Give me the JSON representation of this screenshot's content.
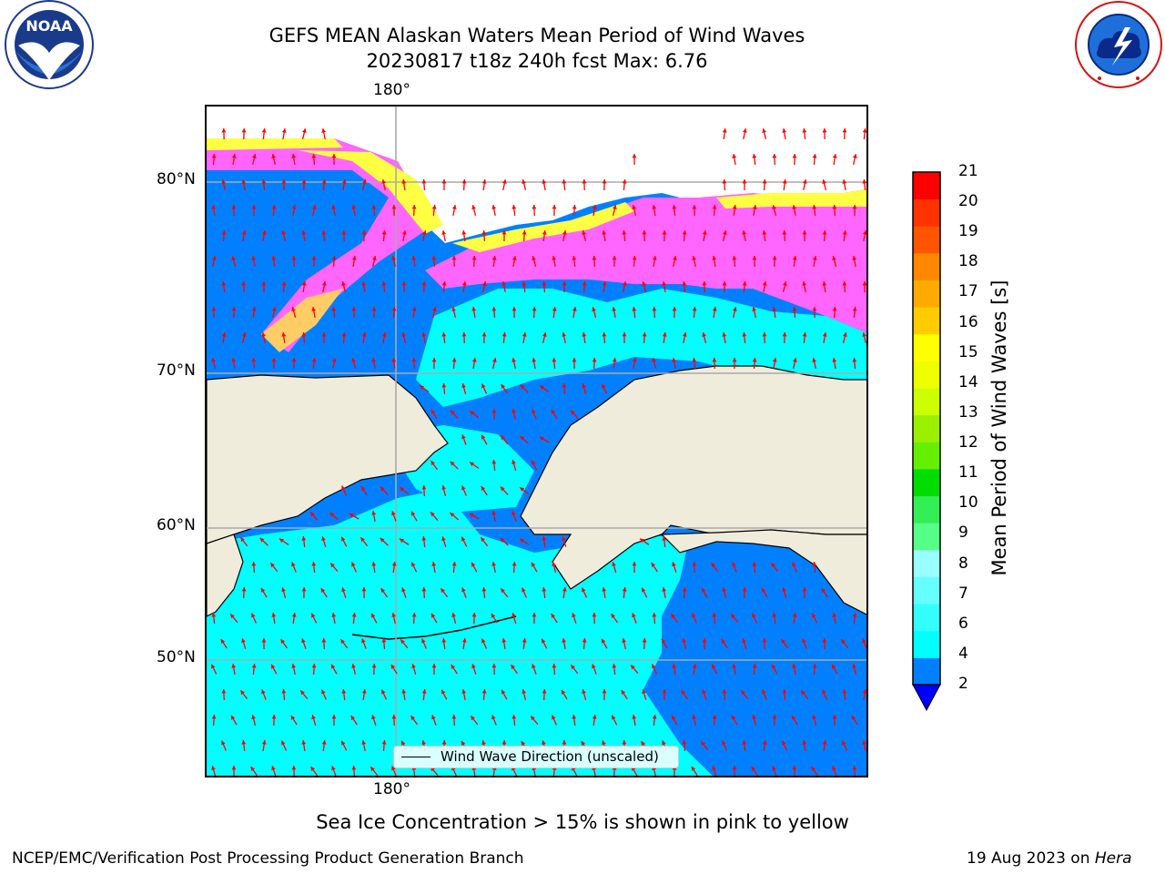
{
  "header": {
    "title_line1": "GEFS MEAN Alaskan Waters Mean Period of Wind Waves",
    "title_line2": "20230817 t18z 240h fcst   Max: 6.76"
  },
  "logos": {
    "noaa": {
      "text": "NOAA",
      "icon": "noaa-seal-icon"
    },
    "nws": {
      "text": "NATIONAL WEATHER SERVICE",
      "icon": "nws-seal-icon"
    }
  },
  "map": {
    "lon_labels": {
      "top": "180°",
      "bottom": "180°"
    },
    "lat_labels": [
      "80°N",
      "70°N",
      "60°N",
      "50°N"
    ],
    "legend_label": "Wind Wave Direction (unscaled)",
    "colors": {
      "ocean_light": "#00ffff",
      "ocean_dark": "#0080ff",
      "ice_pink": "#ff66ff",
      "ice_yellow": "#ffff00",
      "land": "#efecdc",
      "arrows": "#ff0000"
    }
  },
  "colorbar": {
    "label": "Mean Period of Wind Waves [s]",
    "ticks": [
      "2",
      "4",
      "6",
      "7",
      "8",
      "9",
      "10",
      "11",
      "12",
      "13",
      "14",
      "15",
      "16",
      "17",
      "18",
      "19",
      "20",
      "21"
    ],
    "colors": [
      "#0080ff",
      "#00ffff",
      "#33ffff",
      "#66ffff",
      "#99ffff",
      "#55ff88",
      "#33ee55",
      "#00dd00",
      "#66ee00",
      "#99f000",
      "#ccff00",
      "#eeff00",
      "#ffff00",
      "#ffcc00",
      "#ffaa00",
      "#ff8800",
      "#ff5500",
      "#ff3300",
      "#ff0000"
    ],
    "extend_color": "#0000ff"
  },
  "footer": {
    "note": "Sea Ice Concentration > 15% is shown in pink to yellow",
    "credit_left": "NCEP/EMC/Verification Post Processing Product Generation Branch",
    "credit_date": "19 Aug 2023 on ",
    "credit_host": "Hera"
  }
}
